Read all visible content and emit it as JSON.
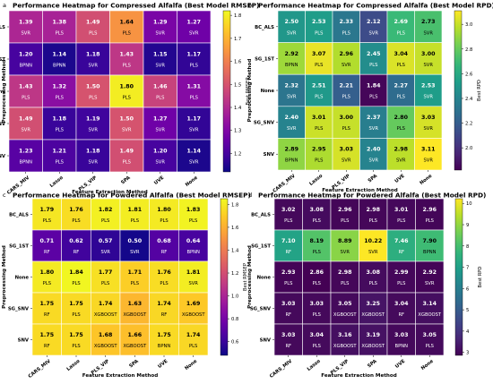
{
  "chart_data": [
    {
      "type": "heatmap",
      "panel_label": "a",
      "title": "Performance Heatmap for Compressed Alfalfa (Best Model RMSEP)",
      "xlabel": "Feature Extraction Method",
      "ylabel": "Preprocessing Method",
      "colorbar_label": "Best RMSEP",
      "colormap": "plasma",
      "vmin": 1.12,
      "vmax": 1.82,
      "colorbar_ticks": [
        "1.2",
        "1.3",
        "1.4",
        "1.5",
        "1.6",
        "1.7",
        "1.8"
      ],
      "x_categories": [
        "CARS_MIV",
        "Lasso",
        "PLS_VIP",
        "SPA",
        "UVE",
        "None"
      ],
      "y_categories": [
        "BC_ALS",
        "SG_1ST",
        "None",
        "SG_SNV",
        "SNV"
      ],
      "values": [
        [
          1.39,
          1.38,
          1.49,
          1.64,
          1.29,
          1.27
        ],
        [
          1.2,
          1.14,
          1.18,
          1.43,
          1.15,
          1.17
        ],
        [
          1.43,
          1.32,
          1.5,
          1.8,
          1.46,
          1.31
        ],
        [
          1.49,
          1.18,
          1.19,
          1.5,
          1.27,
          1.17
        ],
        [
          1.23,
          1.21,
          1.18,
          1.49,
          1.2,
          1.14
        ]
      ],
      "value_labels": [
        [
          "1.39",
          "1.38",
          "1.49",
          "1.64",
          "1.29",
          "1.27"
        ],
        [
          "1.20",
          "1.14",
          "1.18",
          "1.43",
          "1.15",
          "1.17"
        ],
        [
          "1.43",
          "1.32",
          "1.50",
          "1.80",
          "1.46",
          "1.31"
        ],
        [
          "1.49",
          "1.18",
          "1.19",
          "1.50",
          "1.27",
          "1.17"
        ],
        [
          "1.23",
          "1.21",
          "1.18",
          "1.49",
          "1.20",
          "1.14"
        ]
      ],
      "models": [
        [
          "SVR",
          "PLS",
          "PLS",
          "PLS",
          "SVR",
          "SVR"
        ],
        [
          "BPNN",
          "BPNN",
          "SVR",
          "PLS",
          "SVR",
          "PLS"
        ],
        [
          "PLS",
          "PLS",
          "PLS",
          "PLS",
          "PLS",
          "PLS"
        ],
        [
          "SVR",
          "PLS",
          "SVR",
          "SVR",
          "SVR",
          "SVR"
        ],
        [
          "BPNN",
          "PLS",
          "SVR",
          "PLS",
          "SVR",
          "SVR"
        ]
      ]
    },
    {
      "type": "heatmap",
      "panel_label": "b",
      "title": "Performance Heatmap for Compressed Alfalfa (Best Model RPD)",
      "xlabel": "Feature Extraction Method",
      "ylabel": "Preprocessing Method",
      "colorbar_label": "Best RPD",
      "colormap": "viridis",
      "vmin": 1.82,
      "vmax": 3.11,
      "colorbar_ticks": [
        "2.0",
        "2.2",
        "2.4",
        "2.6",
        "2.8",
        "3.0"
      ],
      "x_categories": [
        "CARS_MIV",
        "Lasso",
        "PLS_VIP",
        "SPA",
        "UVE",
        "None"
      ],
      "y_categories": [
        "BC_ALS",
        "SG_1ST",
        "None",
        "SG_SNV",
        "SNV"
      ],
      "values": [
        [
          2.5,
          2.53,
          2.33,
          2.12,
          2.69,
          2.73
        ],
        [
          2.92,
          3.07,
          2.96,
          2.45,
          3.04,
          3.0
        ],
        [
          2.32,
          2.51,
          2.21,
          1.84,
          2.27,
          2.53
        ],
        [
          2.4,
          3.01,
          3.0,
          2.37,
          2.8,
          3.03
        ],
        [
          2.89,
          2.95,
          3.03,
          2.4,
          2.98,
          3.11
        ]
      ],
      "value_labels": [
        [
          "2.50",
          "2.53",
          "2.33",
          "2.12",
          "2.69",
          "2.73"
        ],
        [
          "2.92",
          "3.07",
          "2.96",
          "2.45",
          "3.04",
          "3.00"
        ],
        [
          "2.32",
          "2.51",
          "2.21",
          "1.84",
          "2.27",
          "2.53"
        ],
        [
          "2.40",
          "3.01",
          "3.00",
          "2.37",
          "2.80",
          "3.03"
        ],
        [
          "2.89",
          "2.95",
          "3.03",
          "2.40",
          "2.98",
          "3.11"
        ]
      ],
      "models": [
        [
          "SVR",
          "PLS",
          "PLS",
          "SVR",
          "PLS",
          "SVR"
        ],
        [
          "BPNN",
          "PLS",
          "SVR",
          "PLS",
          "PLS",
          "SVR"
        ],
        [
          "SVR",
          "PLS",
          "PLS",
          "PLS",
          "PLS",
          "SVR"
        ],
        [
          "SVR",
          "PLS",
          "PLS",
          "SVR",
          "PLS",
          "SVR"
        ],
        [
          "BPNN",
          "PLS",
          "SVR",
          "SVR",
          "SVR",
          "SVR"
        ]
      ]
    },
    {
      "type": "heatmap",
      "panel_label": "c",
      "title": "Performance Heatmap for Powdered Alfalfa (Best Model RMSEP)",
      "xlabel": "Feature Extraction Method",
      "ylabel": "Preprocessing Method",
      "colorbar_label": "Best RMSEP",
      "colormap": "plasma",
      "vmin": 0.48,
      "vmax": 1.85,
      "colorbar_ticks": [
        "0.6",
        "0.8",
        "1.0",
        "1.2",
        "1.4",
        "1.6",
        "1.8"
      ],
      "x_categories": [
        "CARS_MIV",
        "Lasso",
        "PLS_VIP",
        "SPA",
        "UVE",
        "None"
      ],
      "y_categories": [
        "BC_ALS",
        "SG_1ST",
        "None",
        "SG_SNV",
        "SNV"
      ],
      "values": [
        [
          1.79,
          1.76,
          1.82,
          1.81,
          1.8,
          1.83
        ],
        [
          0.71,
          0.62,
          0.57,
          0.5,
          0.68,
          0.64
        ],
        [
          1.8,
          1.84,
          1.77,
          1.71,
          1.76,
          1.81
        ],
        [
          1.75,
          1.75,
          1.74,
          1.63,
          1.74,
          1.69
        ],
        [
          1.75,
          1.75,
          1.68,
          1.66,
          1.75,
          1.74
        ]
      ],
      "value_labels": [
        [
          "1.79",
          "1.76",
          "1.82",
          "1.81",
          "1.80",
          "1.83"
        ],
        [
          "0.71",
          "0.62",
          "0.57",
          "0.50",
          "0.68",
          "0.64"
        ],
        [
          "1.80",
          "1.84",
          "1.77",
          "1.71",
          "1.76",
          "1.81"
        ],
        [
          "1.75",
          "1.75",
          "1.74",
          "1.63",
          "1.74",
          "1.69"
        ],
        [
          "1.75",
          "1.75",
          "1.68",
          "1.66",
          "1.75",
          "1.74"
        ]
      ],
      "models": [
        [
          "PLS",
          "PLS",
          "PLS",
          "PLS",
          "PLS",
          "PLS"
        ],
        [
          "RF",
          "RF",
          "SVR",
          "SVR",
          "RF",
          "BPNN"
        ],
        [
          "PLS",
          "PLS",
          "PLS",
          "PLS",
          "PLS",
          "SVR"
        ],
        [
          "RF",
          "PLS",
          "XGBOOST",
          "XGBOOST",
          "RF",
          "XGBOOST"
        ],
        [
          "RF",
          "PLS",
          "XGBOOST",
          "XGBOOST",
          "BPNN",
          "PLS"
        ]
      ]
    },
    {
      "type": "heatmap",
      "panel_label": "d",
      "title": "Performance Heatmap for Powdered Alfalfa (Best Model RPD)",
      "xlabel": "Feature Extraction Method",
      "ylabel": "Preprocessing Method",
      "colorbar_label": "Best RPD",
      "colormap": "viridis",
      "vmin": 2.86,
      "vmax": 10.22,
      "colorbar_ticks": [
        "3",
        "4",
        "5",
        "6",
        "7",
        "8",
        "9",
        "10"
      ],
      "x_categories": [
        "CARS_MIV",
        "Lasso",
        "PLS_VIP",
        "SPA",
        "UVE",
        "None"
      ],
      "y_categories": [
        "BC_ALS",
        "SG_1ST",
        "None",
        "SG_SNV",
        "SNV"
      ],
      "values": [
        [
          3.02,
          3.08,
          2.96,
          2.98,
          3.01,
          2.96
        ],
        [
          7.1,
          8.19,
          8.89,
          10.22,
          7.46,
          7.9
        ],
        [
          2.93,
          2.86,
          2.98,
          3.08,
          2.99,
          2.92
        ],
        [
          3.03,
          3.03,
          3.05,
          3.25,
          3.04,
          3.14
        ],
        [
          3.03,
          3.04,
          3.16,
          3.19,
          3.03,
          3.05
        ]
      ],
      "value_labels": [
        [
          "3.02",
          "3.08",
          "2.96",
          "2.98",
          "3.01",
          "2.96"
        ],
        [
          "7.10",
          "8.19",
          "8.89",
          "10.22",
          "7.46",
          "7.90"
        ],
        [
          "2.93",
          "2.86",
          "2.98",
          "3.08",
          "2.99",
          "2.92"
        ],
        [
          "3.03",
          "3.03",
          "3.05",
          "3.25",
          "3.04",
          "3.14"
        ],
        [
          "3.03",
          "3.04",
          "3.16",
          "3.19",
          "3.03",
          "3.05"
        ]
      ],
      "models": [
        [
          "PLS",
          "PLS",
          "PLS",
          "PLS",
          "PLS",
          "PLS"
        ],
        [
          "RF",
          "PLS",
          "SVR",
          "SVR",
          "RF",
          "BPNN"
        ],
        [
          "PLS",
          "PLS",
          "PLS",
          "PLS",
          "PLS",
          "SVR"
        ],
        [
          "RF",
          "PLS",
          "XGBOOST",
          "XGBOOST",
          "RF",
          "XGBOOST"
        ],
        [
          "RF",
          "PLS",
          "XGBOOST",
          "XGBOOST",
          "BPNN",
          "PLS"
        ]
      ]
    }
  ]
}
